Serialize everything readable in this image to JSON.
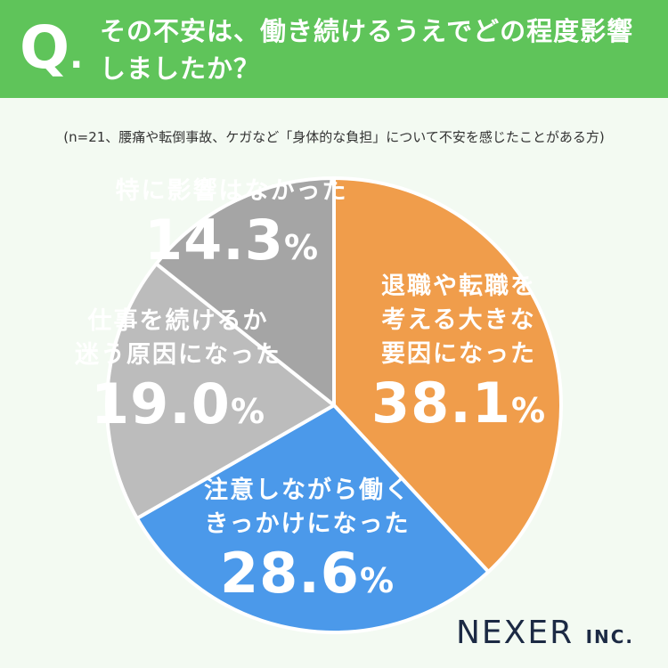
{
  "header": {
    "q_mark": "Q",
    "q_dot": ".",
    "question": "その不安は、働き続けるうえでどの程度影響しましたか？"
  },
  "note": "(n=21、腰痛や転倒事故、ケガなど「身体的な負担」について不安を感じたことがある方)",
  "percent_unit": "%",
  "colors": {
    "header": "#5fc45a",
    "background": "#f3faf2",
    "orange": "#f09d4b",
    "blue": "#4b99ea",
    "light_gray": "#bcbcbc",
    "dark_gray": "#a5a5a5"
  },
  "chart_data": {
    "type": "pie",
    "start_angle_deg": 0,
    "direction": "clockwise",
    "slices": [
      {
        "label": [
          "退職や転職を",
          "考える大きな",
          "要因になった"
        ],
        "value": 38.1,
        "display": "38.1",
        "color": "#f09d4b"
      },
      {
        "label": [
          "注意しながら働く",
          "きっかけになった"
        ],
        "value": 28.6,
        "display": "28.6",
        "color": "#4b99ea"
      },
      {
        "label": [
          "仕事を続けるか",
          "迷う原因になった"
        ],
        "value": 19.0,
        "display": "19.0",
        "color": "#bcbcbc"
      },
      {
        "label": [
          "特に影響はなかった"
        ],
        "value": 14.3,
        "display": "14.3",
        "color": "#a5a5a5"
      }
    ]
  },
  "logo": {
    "name": "NEXER",
    "suffix": "INC."
  }
}
